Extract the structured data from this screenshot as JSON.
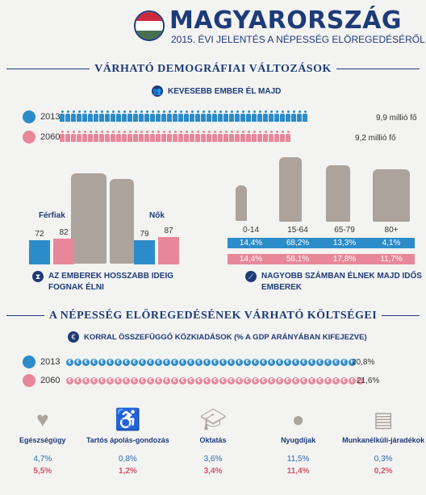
{
  "header": {
    "title": "MAGYARORSZÁG",
    "subtitle": "2015. ÉVI JELENTÉS A NÉPESSÉG ELÖREGEDÉSÉRŐL",
    "flag_colors": [
      "#ce2939",
      "#ffffff",
      "#477050"
    ]
  },
  "section1": {
    "title": "VÁRHATÓ DEMOGRÁFIAI VÁLTOZÁSOK",
    "headline": "KEVESEBB EMBER ÉL MAJD",
    "rows": [
      {
        "year": "2013",
        "value": "9,9 millió fő",
        "color": "#2b8cc9",
        "count": 44
      },
      {
        "year": "2060",
        "value": "9,2 millió fő",
        "color": "#e8879a",
        "count": 41
      }
    ],
    "life": {
      "men_label": "Férfiak",
      "women_label": "Nők",
      "men": [
        "72",
        "82"
      ],
      "women": [
        "79",
        "87"
      ],
      "note": "AZ EMBEREK HOSSZABB IDEIG FOGNAK ÉLNI"
    },
    "age": {
      "groups": [
        "0-14",
        "15-64",
        "65-79",
        "80+"
      ],
      "y2013": [
        "14,4%",
        "68,2%",
        "13,3%",
        "4,1%"
      ],
      "y2060": [
        "14,4%",
        "56,1%",
        "17,8%",
        "11,7%"
      ],
      "note": "NAGYOBB SZÁMBAN ÉLNEK MAJD IDŐS EMBEREK"
    }
  },
  "section2": {
    "title": "A NÉPESSÉG ELÖREGEDÉSÉNEK VÁRHATÓ KÖLTSÉGEI",
    "headline": "KORRAL ÖSSZEFÜGGŐ KÖZKIADÁSOK (% A GDP ARÁNYÁBAN KIFEJEZVE)",
    "rows": [
      {
        "year": "2013",
        "value": "20,8%",
        "color": "#2b8cc9",
        "count": 36
      },
      {
        "year": "2060",
        "value": "21,6%",
        "color": "#e8879a",
        "count": 37
      }
    ],
    "coin_symbol": "€",
    "categories": [
      {
        "label": "Egészségügy",
        "icon": "heart-icon",
        "v2013": "4,7%",
        "v2060": "5,5%"
      },
      {
        "label": "Tartós ápolás-gondozás",
        "icon": "wheelchair-icon",
        "v2013": "0,8%",
        "v2060": "1,2%"
      },
      {
        "label": "Oktatás",
        "icon": "graduation-cap-icon",
        "v2013": "3,6%",
        "v2060": "3,4%"
      },
      {
        "label": "Nyugdíjak",
        "icon": "piggy-bank-icon",
        "v2013": "11,5%",
        "v2060": "11,4%"
      },
      {
        "label": "Munkanélküli-járadékok",
        "icon": "money-stack-icon",
        "v2013": "0,3%",
        "v2060": "0,2%"
      }
    ]
  }
}
